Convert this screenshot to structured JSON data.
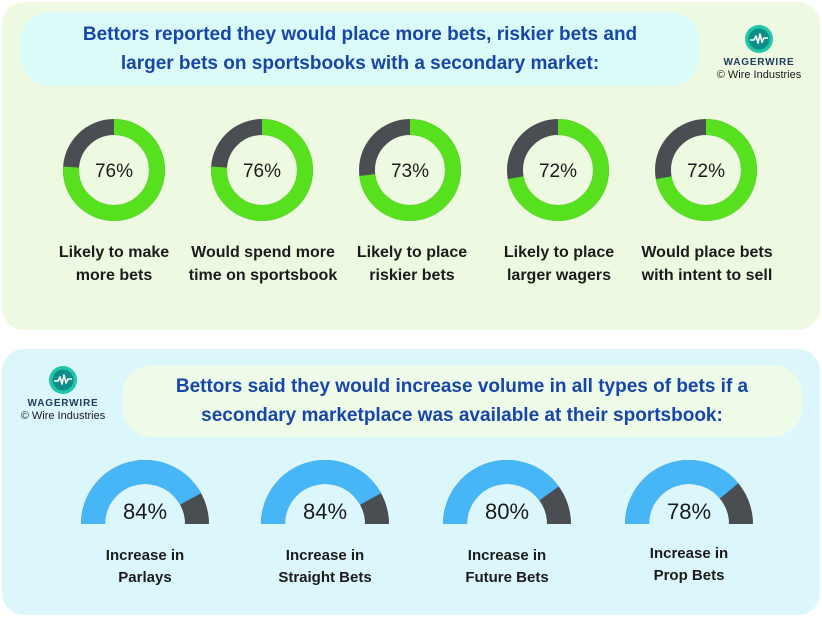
{
  "top": {
    "title_line1": "Bettors reported they would place more bets, riskier bets and",
    "title_line2": "larger bets on sportsbooks with a secondary market:"
  },
  "bottom": {
    "title_line1": "Bettors said they would increase volume in all types of bets if a",
    "title_line2": "secondary marketplace was available at their sportsbook:"
  },
  "logo": {
    "name": "WAGERWIRE",
    "copyright": "© Wire Industries"
  },
  "colors": {
    "green": "#56e01e",
    "blue": "#47b6f6",
    "dark": "#4a4d52",
    "title_blue": "#1746a8"
  },
  "chart_data": [
    {
      "type": "pie",
      "style": "donut",
      "categories": [
        "Likely to make more bets",
        "Would spend more time on sportsbook",
        "Likely to place riskier bets",
        "Likely to place larger wagers",
        "Would place bets with intent to sell"
      ],
      "label_lines": [
        [
          "Likely to make",
          "more bets"
        ],
        [
          "Would spend more",
          "time on sportsbook"
        ],
        [
          "Likely to place",
          "riskier bets"
        ],
        [
          "Likely to place",
          "larger wagers"
        ],
        [
          "Would place bets",
          "with intent to sell"
        ]
      ],
      "values": [
        76,
        76,
        73,
        72,
        72
      ],
      "value_labels": [
        "76%",
        "76%",
        "73%",
        "72%",
        "72%"
      ]
    },
    {
      "type": "pie",
      "style": "half-gauge",
      "categories": [
        "Increase in Parlays",
        "Increase in Straight Bets",
        "Increase in Future Bets",
        "Increase in Prop Bets"
      ],
      "label_lines": [
        [
          "Increase in",
          "Parlays"
        ],
        [
          "Increase in",
          "Straight Bets"
        ],
        [
          "Increase in",
          "Future Bets"
        ],
        [
          "Increase in",
          "Prop Bets"
        ]
      ],
      "values": [
        84,
        84,
        80,
        78
      ],
      "value_labels": [
        "84%",
        "84%",
        "80%",
        "78%"
      ]
    }
  ]
}
